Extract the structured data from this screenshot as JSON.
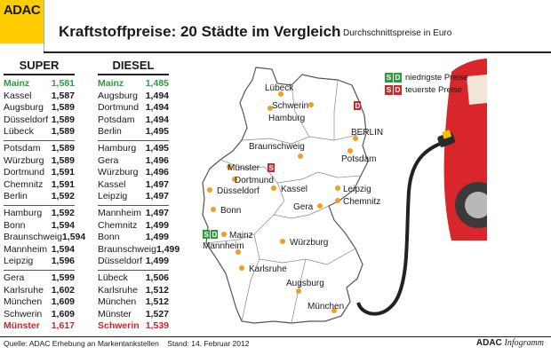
{
  "header": {
    "logo": "ADAC",
    "title": "Kraftstoffpreise: 20 Städte im Vergleich",
    "subtitle": "Durchschnittspreise in Euro"
  },
  "legend": {
    "badge_s": "S",
    "badge_d": "D",
    "low": "niedrigste Preise",
    "high": "teuerste Preise",
    "low_color": "#2e9b3a",
    "high_color": "#d0262b"
  },
  "footer": {
    "source": "Quelle: ADAC Erhebung an Markentankstellen",
    "date": "Stand: 14. Februar 2012",
    "brand_a": "ADAC",
    "brand_b": "Infogramm"
  },
  "chart_data": [
    {
      "type": "table",
      "title": "SUPER",
      "unit": "Euro",
      "rows": [
        {
          "city": "Mainz",
          "value": "1,581"
        },
        {
          "city": "Kassel",
          "value": "1,587"
        },
        {
          "city": "Augsburg",
          "value": "1,589"
        },
        {
          "city": "Düsseldorf",
          "value": "1,589"
        },
        {
          "city": "Lübeck",
          "value": "1,589"
        },
        {
          "city": "Potsdam",
          "value": "1,589"
        },
        {
          "city": "Würzburg",
          "value": "1,589"
        },
        {
          "city": "Dortmund",
          "value": "1,591"
        },
        {
          "city": "Chemnitz",
          "value": "1,591"
        },
        {
          "city": "Berlin",
          "value": "1,592"
        },
        {
          "city": "Hamburg",
          "value": "1,592"
        },
        {
          "city": "Bonn",
          "value": "1,594"
        },
        {
          "city": "Braunschweig",
          "value": "1,594"
        },
        {
          "city": "Mannheim",
          "value": "1,594"
        },
        {
          "city": "Leipzig",
          "value": "1,596"
        },
        {
          "city": "Gera",
          "value": "1,599"
        },
        {
          "city": "Karlsruhe",
          "value": "1,602"
        },
        {
          "city": "München",
          "value": "1,609"
        },
        {
          "city": "Schwerin",
          "value": "1,609"
        },
        {
          "city": "Münster",
          "value": "1,617"
        }
      ]
    },
    {
      "type": "table",
      "title": "DIESEL",
      "unit": "Euro",
      "rows": [
        {
          "city": "Mainz",
          "value": "1,485"
        },
        {
          "city": "Augsburg",
          "value": "1,494"
        },
        {
          "city": "Dortmund",
          "value": "1,494"
        },
        {
          "city": "Potsdam",
          "value": "1,494"
        },
        {
          "city": "Berlin",
          "value": "1,495"
        },
        {
          "city": "Hamburg",
          "value": "1,495"
        },
        {
          "city": "Gera",
          "value": "1,496"
        },
        {
          "city": "Würzburg",
          "value": "1,496"
        },
        {
          "city": "Kassel",
          "value": "1,497"
        },
        {
          "city": "Leipzig",
          "value": "1,497"
        },
        {
          "city": "Mannheim",
          "value": "1,497"
        },
        {
          "city": "Chemnitz",
          "value": "1,499"
        },
        {
          "city": "Bonn",
          "value": "1,499"
        },
        {
          "city": "Braunschweig",
          "value": "1,499"
        },
        {
          "city": "Düsseldorf",
          "value": "1,499"
        },
        {
          "city": "Lübeck",
          "value": "1,506"
        },
        {
          "city": "Karlsruhe",
          "value": "1,512"
        },
        {
          "city": "München",
          "value": "1,512"
        },
        {
          "city": "Münster",
          "value": "1,527"
        },
        {
          "city": "Schwerin",
          "value": "1,539"
        }
      ]
    }
  ],
  "map_labels": {
    "luebeck": "Lübeck",
    "hamburg": "Hamburg",
    "schwerin": "Schwerin",
    "berlin": "BERLIN",
    "potsdam": "Potsdam",
    "braunschweig": "Braunschweig",
    "muenster": "Münster",
    "dortmund": "Dortmund",
    "duesseldorf": "Düsseldorf",
    "kassel": "Kassel",
    "bonn": "Bonn",
    "leipzig": "Leipzig",
    "chemnitz": "Chemnitz",
    "gera": "Gera",
    "mainz": "Mainz",
    "wuerzburg": "Würzburg",
    "mannheim": "Mannheim",
    "karlsruhe": "Karlsruhe",
    "augsburg": "Augsburg",
    "muenchen": "München"
  }
}
